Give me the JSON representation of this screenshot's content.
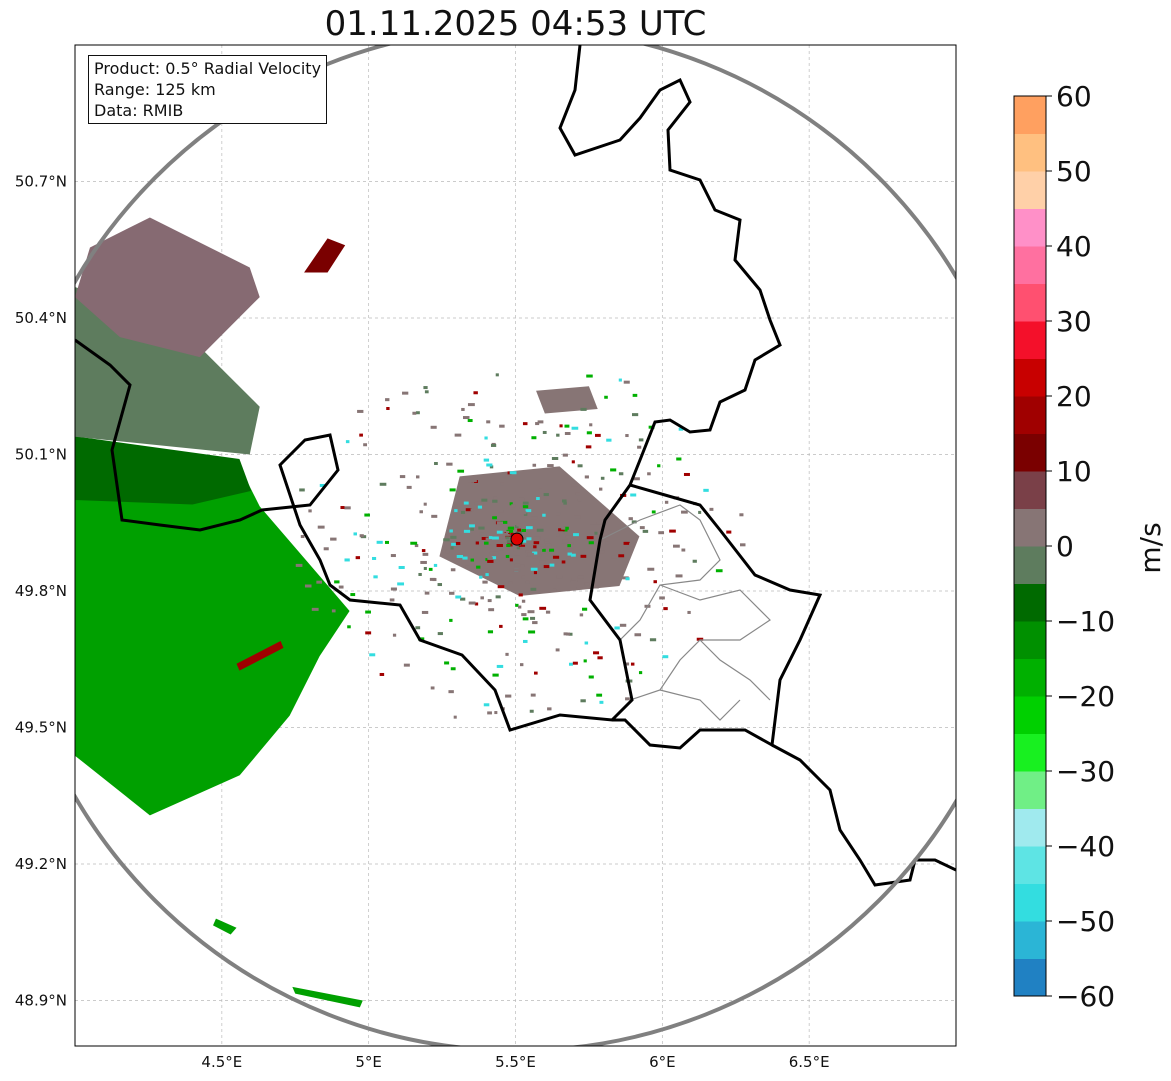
{
  "chart_data": {
    "type": "heatmap",
    "title": "01.11.2025 04:53 UTC",
    "info": {
      "product": "Product: 0.5° Radial Velocity",
      "range": "Range: 125 km",
      "source": "Data: RMIB"
    },
    "xlim": [
      4.0,
      7.0
    ],
    "ylim": [
      48.8,
      51.0
    ],
    "xticks": [
      {
        "v": 4.5,
        "label": "4.5°E"
      },
      {
        "v": 5.0,
        "label": "5°E"
      },
      {
        "v": 5.5,
        "label": "5.5°E"
      },
      {
        "v": 6.0,
        "label": "6°E"
      },
      {
        "v": 6.5,
        "label": "6.5°E"
      }
    ],
    "yticks": [
      {
        "v": 50.7,
        "label": "50.7°N"
      },
      {
        "v": 50.4,
        "label": "50.4°N"
      },
      {
        "v": 50.1,
        "label": "50.1°N"
      },
      {
        "v": 49.8,
        "label": "49.8°N"
      },
      {
        "v": 49.5,
        "label": "49.5°N"
      },
      {
        "v": 49.2,
        "label": "49.2°N"
      },
      {
        "v": 48.9,
        "label": "48.9°N"
      }
    ],
    "grid": true,
    "radar_site": {
      "lon": 5.505,
      "lat": 49.914,
      "range_km": 125
    },
    "colorbar": {
      "label": "m/s",
      "vmin": -60,
      "vmax": 60,
      "ticks": [
        {
          "v": 60,
          "label": "60"
        },
        {
          "v": 50,
          "label": "50"
        },
        {
          "v": 40,
          "label": "40"
        },
        {
          "v": 30,
          "label": "30"
        },
        {
          "v": 20,
          "label": "20"
        },
        {
          "v": 10,
          "label": "10"
        },
        {
          "v": 0,
          "label": "0"
        },
        {
          "v": -10,
          "label": "−10"
        },
        {
          "v": -20,
          "label": "−20"
        },
        {
          "v": -30,
          "label": "−30"
        },
        {
          "v": -40,
          "label": "−40"
        },
        {
          "v": -50,
          "label": "−50"
        },
        {
          "v": -60,
          "label": "−60"
        }
      ],
      "colors": [
        "#2081c3",
        "#2bb5d6",
        "#33dde0",
        "#5ee4e4",
        "#a0eaee",
        "#70ef86",
        "#18f020",
        "#00d000",
        "#00b000",
        "#009000",
        "#006a00",
        "#5e7c5e",
        "#877575",
        "#7a4048",
        "#7a0000",
        "#a00000",
        "#c80000",
        "#f4102a",
        "#ff5070",
        "#ff70a0",
        "#ff90c8",
        "#ffd0a8",
        "#ffc080",
        "#ffa060"
      ]
    },
    "echo_regions": [
      {
        "name": "inbound-green-large",
        "velocity": -17,
        "color": "#00a000",
        "points": [
          [
            4.0,
            50.117
          ],
          [
            4.561,
            50.073
          ],
          [
            4.629,
            49.986
          ],
          [
            4.833,
            49.833
          ],
          [
            4.935,
            49.756
          ],
          [
            4.833,
            49.657
          ],
          [
            4.731,
            49.526
          ],
          [
            4.561,
            49.395
          ],
          [
            4.255,
            49.307
          ],
          [
            4.0,
            49.438
          ]
        ]
      },
      {
        "name": "inbound-dark-green",
        "velocity": -8,
        "color": "#006a00",
        "points": [
          [
            4.0,
            50.14
          ],
          [
            4.56,
            50.09
          ],
          [
            4.6,
            50.02
          ],
          [
            4.4,
            49.99
          ],
          [
            4.0,
            50.0
          ]
        ]
      },
      {
        "name": "near-zero-greygreen",
        "velocity": -3,
        "color": "#5e7c5e",
        "points": [
          [
            4.0,
            50.468
          ],
          [
            4.357,
            50.38
          ],
          [
            4.629,
            50.205
          ],
          [
            4.595,
            50.1
          ],
          [
            4.0,
            50.139
          ]
        ]
      },
      {
        "name": "outbound-mauve",
        "velocity": 4,
        "color": "#866a72",
        "points": [
          [
            4.051,
            50.555
          ],
          [
            4.255,
            50.621
          ],
          [
            4.595,
            50.511
          ],
          [
            4.629,
            50.446
          ],
          [
            4.425,
            50.314
          ],
          [
            4.153,
            50.358
          ],
          [
            4.0,
            50.446
          ]
        ]
      },
      {
        "name": "outbound-darkred-blob",
        "velocity": 12,
        "color": "#7a0000",
        "points": [
          [
            4.78,
            50.5
          ],
          [
            4.86,
            50.575
          ],
          [
            4.92,
            50.56
          ],
          [
            4.86,
            50.5
          ]
        ]
      },
      {
        "name": "central-clutter",
        "velocity": 1,
        "color": "#877575",
        "points": [
          [
            5.31,
            50.052
          ],
          [
            5.65,
            50.074
          ],
          [
            5.922,
            49.92
          ],
          [
            5.854,
            49.811
          ],
          [
            5.514,
            49.789
          ],
          [
            5.241,
            49.876
          ]
        ]
      },
      {
        "name": "north-clutter",
        "velocity": 1,
        "color": "#877575",
        "points": [
          [
            5.57,
            50.24
          ],
          [
            5.75,
            50.25
          ],
          [
            5.78,
            50.2
          ],
          [
            5.6,
            50.19
          ]
        ]
      },
      {
        "name": "south-green-strip",
        "velocity": -18,
        "color": "#00a000",
        "points": [
          [
            4.74,
            48.93
          ],
          [
            4.98,
            48.9
          ],
          [
            4.97,
            48.885
          ],
          [
            4.75,
            48.915
          ]
        ]
      },
      {
        "name": "south-green-blob",
        "velocity": -18,
        "color": "#00a000",
        "points": [
          [
            4.48,
            49.08
          ],
          [
            4.55,
            49.06
          ],
          [
            4.53,
            49.045
          ],
          [
            4.47,
            49.065
          ]
        ]
      },
      {
        "name": "red-streak",
        "velocity": 14,
        "color": "#a00000",
        "points": [
          [
            4.55,
            49.64
          ],
          [
            4.7,
            49.69
          ],
          [
            4.71,
            49.675
          ],
          [
            4.56,
            49.625
          ]
        ]
      }
    ]
  }
}
